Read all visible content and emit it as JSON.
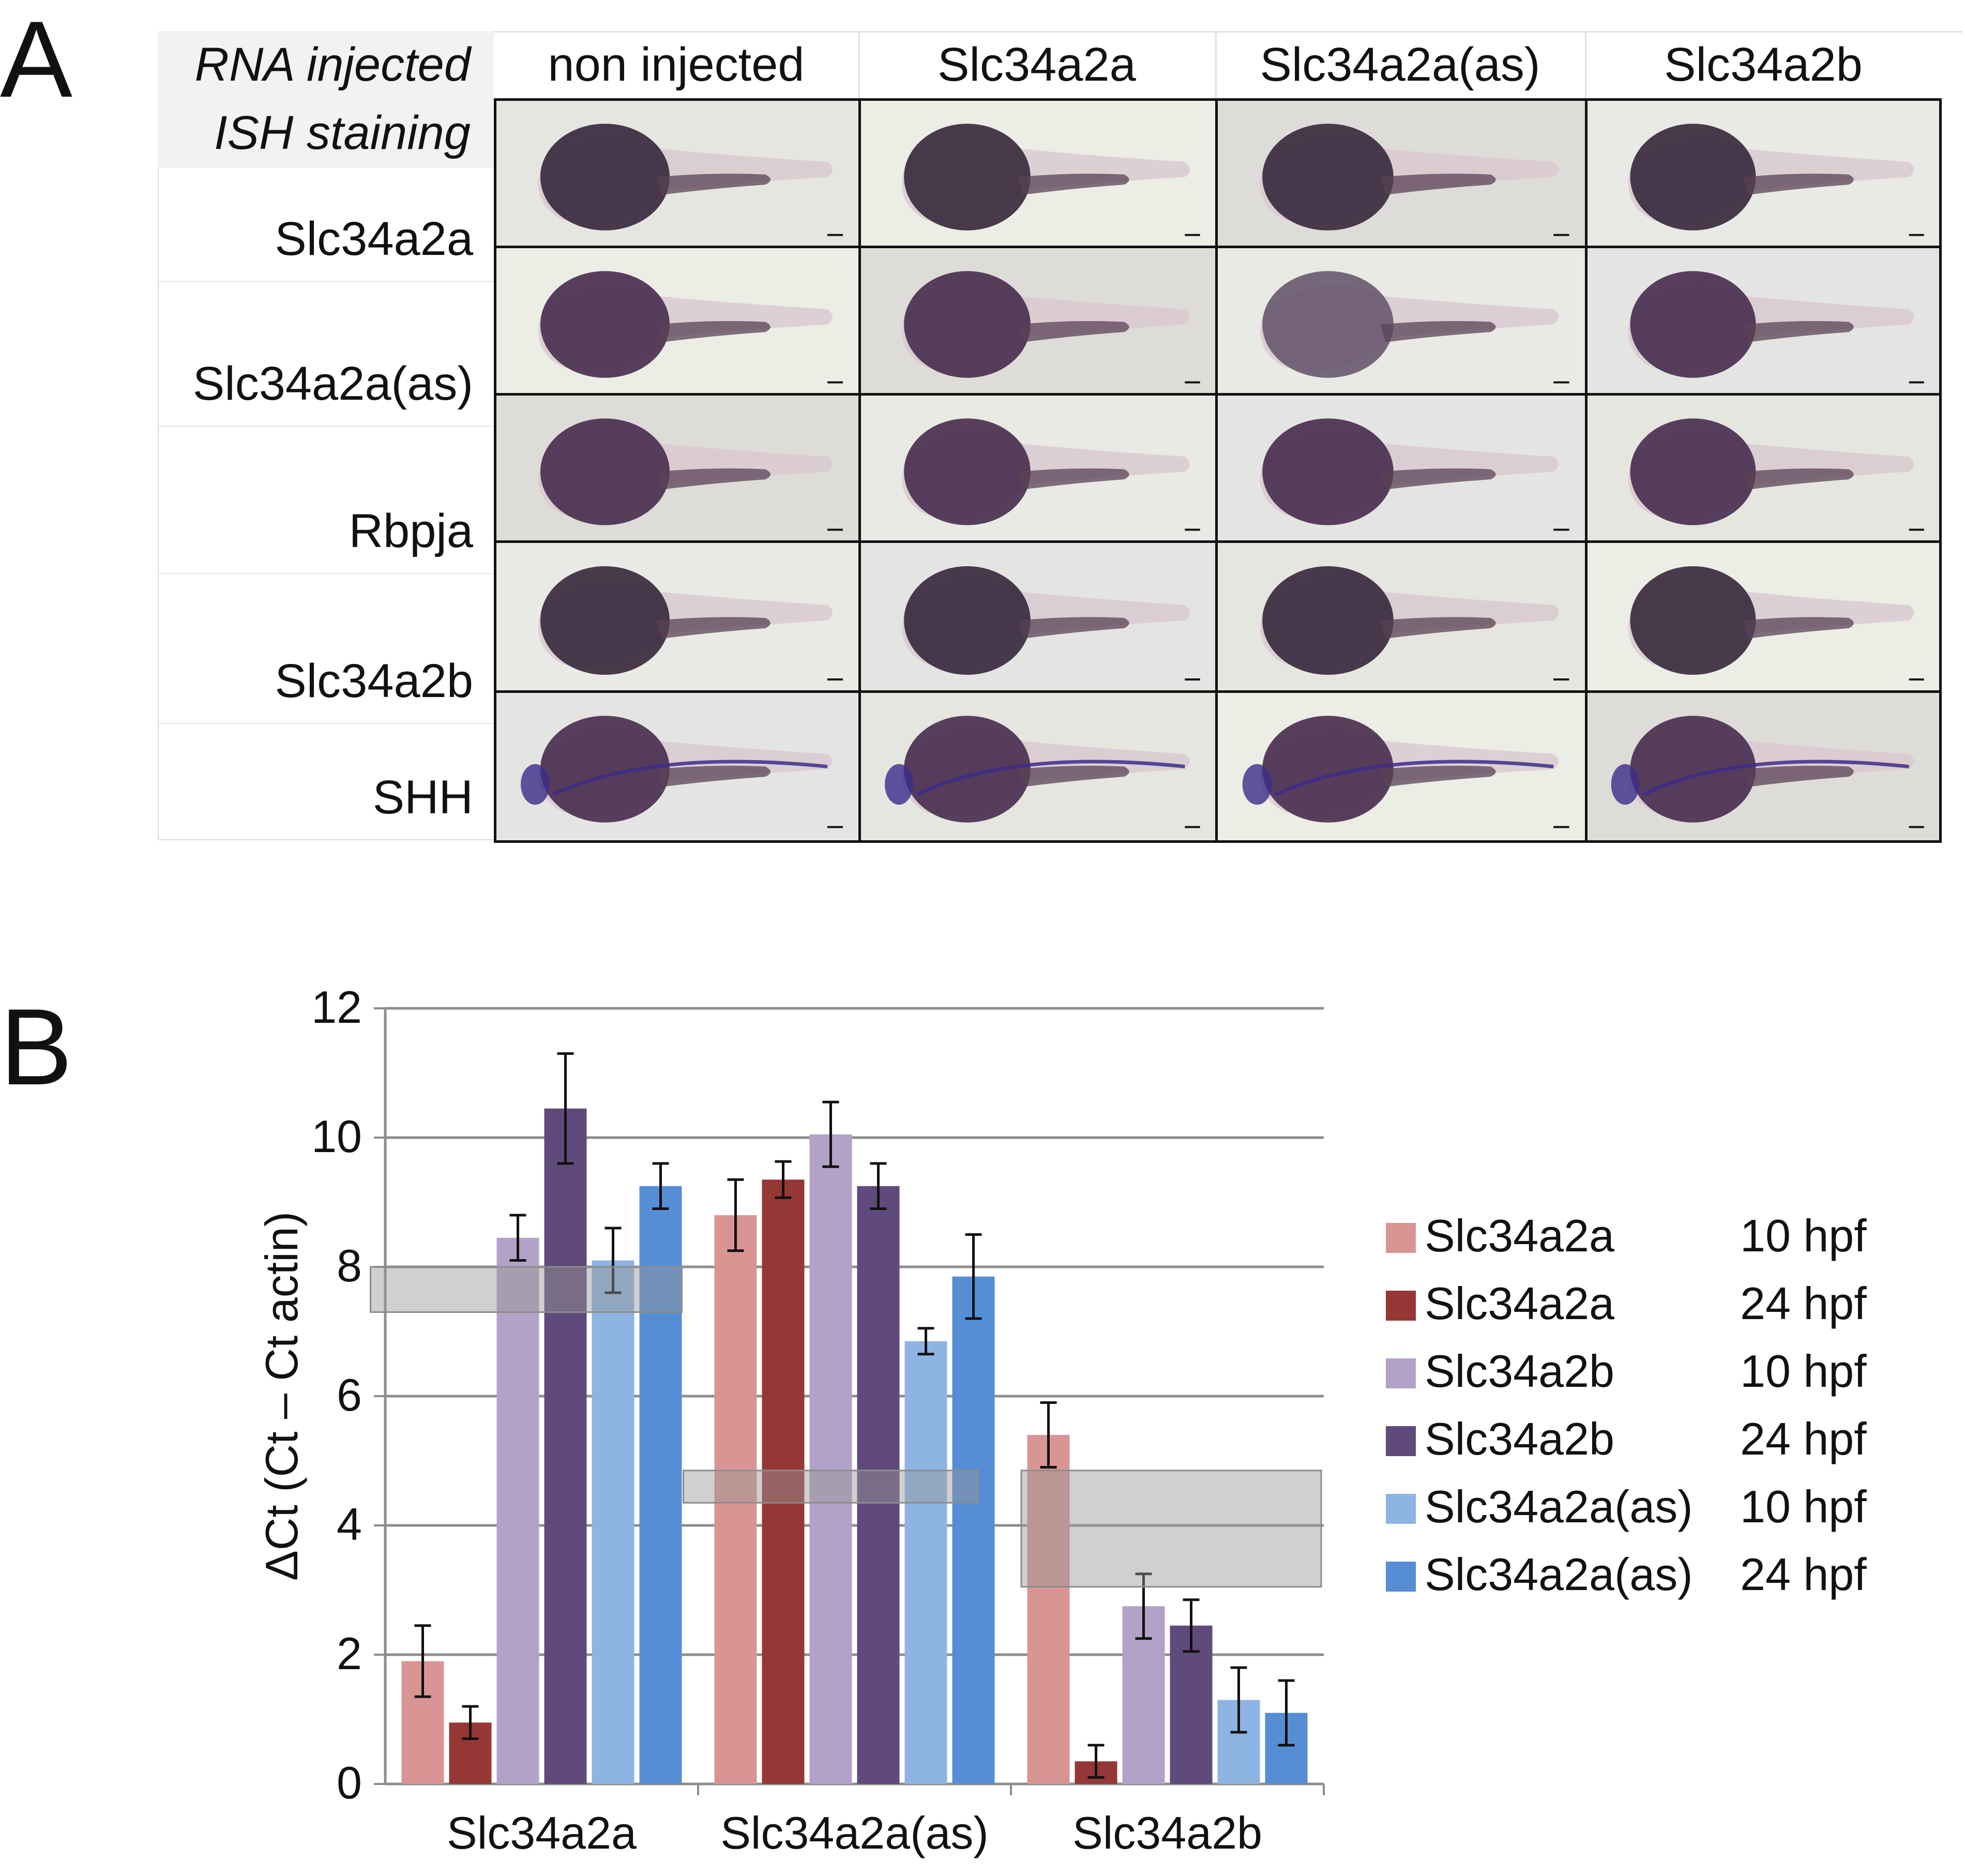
{
  "panel_a": {
    "letter": "A",
    "header_label": "RNA injected",
    "row_header_label": "ISH staining",
    "columns": [
      "non injected",
      "Slc34a2a",
      "Slc34a2a(as)",
      "Slc34a2b"
    ],
    "rows": [
      "Slc34a2a",
      "Slc34a2a(as)",
      "Rbpja",
      "Slc34a2b",
      "SHH"
    ]
  },
  "panel_b": {
    "letter": "B"
  },
  "chart_data": {
    "type": "bar",
    "title": "",
    "xlabel": "",
    "ylabel": "ΔCt (Ct – Ct actin)",
    "ylim": [
      0,
      12
    ],
    "yticks": [
      "0",
      "2",
      "4",
      "6",
      "8",
      "10",
      "12"
    ],
    "grid": true,
    "legend_position": "right",
    "categories": [
      "Slc34a2a",
      "Slc34a2a(as)",
      "Slc34a2b"
    ],
    "series": [
      {
        "name": "Slc34a2a",
        "stage": "10 hpf",
        "color": "#d99594",
        "values": [
          1.9,
          8.8,
          5.4
        ],
        "errors": [
          0.55,
          0.55,
          0.5
        ]
      },
      {
        "name": "Slc34a2a",
        "stage": "24 hpf",
        "color": "#953735",
        "values": [
          0.95,
          9.35,
          0.35
        ],
        "errors": [
          0.25,
          0.28,
          0.25
        ]
      },
      {
        "name": "Slc34a2b",
        "stage": "10 hpf",
        "color": "#b3a2c7",
        "values": [
          8.45,
          10.05,
          2.75
        ],
        "errors": [
          0.35,
          0.5,
          0.5
        ]
      },
      {
        "name": "Slc34a2b",
        "stage": "24 hpf",
        "color": "#604a7b",
        "values": [
          10.45,
          9.25,
          2.45
        ],
        "errors": [
          0.85,
          0.35,
          0.4
        ]
      },
      {
        "name": "Slc34a2a(as)",
        "stage": "10 hpf",
        "color": "#8eb4e3",
        "values": [
          8.1,
          6.85,
          1.3
        ],
        "errors": [
          0.5,
          0.2,
          0.5
        ]
      },
      {
        "name": "Slc34a2a(as)",
        "stage": "24 hpf",
        "color": "#558ed5",
        "values": [
          9.25,
          7.85,
          1.1
        ],
        "errors": [
          0.35,
          0.65,
          0.5
        ]
      }
    ],
    "shaded_bands": [
      {
        "category": "Slc34a2a",
        "y_low": 7.3,
        "y_high": 8.0
      },
      {
        "category": "Slc34a2a(as)",
        "y_low": 4.35,
        "y_high": 4.85
      },
      {
        "category": "Slc34a2b",
        "y_low": 3.05,
        "y_high": 4.85
      }
    ]
  }
}
